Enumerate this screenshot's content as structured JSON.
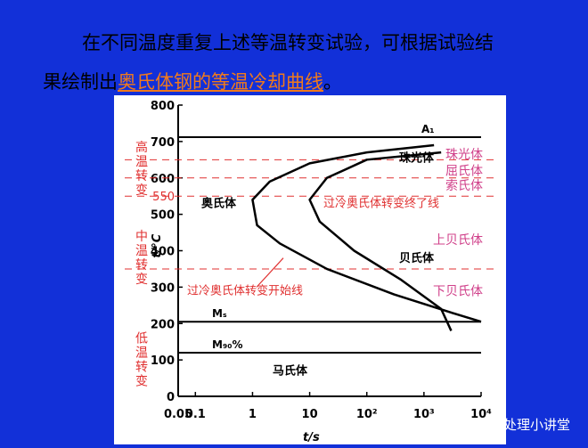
{
  "slide": {
    "line1": "在不同温度重复上述等温转变试验，可根据试验结",
    "line2_prefix": "果绘制出",
    "line2_link": "奥氏体钢的等温冷却曲线",
    "line2_end": "。",
    "watermark": "热处理小讲堂"
  },
  "chart_data": {
    "type": "ttt",
    "xlabel": "t/s",
    "ylabel": "t/°C",
    "log_x": true,
    "xlim": [
      0.05,
      10000
    ],
    "xticks": [
      0.05,
      0.1,
      1,
      10,
      {
        "value": 100,
        "label": "10²"
      },
      {
        "value": 1000,
        "label": "10³"
      },
      {
        "value": 10000,
        "label": "10⁴"
      }
    ],
    "ylim": [
      0,
      800
    ],
    "yticks": [
      0,
      100,
      200,
      300,
      400,
      500,
      600,
      700,
      800
    ],
    "series": [
      {
        "color": "#000000",
        "x": [
          1500,
          100,
          10,
          2,
          1,
          1.2,
          3,
          20,
          300,
          3000,
          10000
        ],
        "values": [
          690,
          670,
          640,
          590,
          540,
          470,
          420,
          350,
          280,
          230,
          205
        ]
      },
      {
        "color": "#000000",
        "x": [
          2000,
          100,
          20,
          10,
          15,
          60,
          400,
          2000,
          3000
        ],
        "values": [
          670,
          650,
          600,
          540,
          480,
          400,
          320,
          240,
          180
        ]
      }
    ],
    "hlines": [
      {
        "label": "A₁",
        "value": 712
      },
      {
        "label": "Mₛ",
        "value": 205
      },
      {
        "label": "M₉₀%",
        "value": 120
      }
    ],
    "dashed_lines": {
      "color": "#e03030",
      "values": [
        650,
        600,
        550,
        350
      ]
    },
    "boundary_label": {
      "text": "550",
      "value": 550
    },
    "regions": [
      "高温转变",
      "中温转变",
      "低温转变"
    ],
    "phase_labels": {
      "color": "#d0408a",
      "items": [
        "珠光体",
        "屈氏体",
        "索氏体",
        "上贝氏体",
        "下贝氏体"
      ]
    },
    "annotations": [
      "奥氏体",
      "珠光体",
      "贝氏体",
      "马氏体",
      "过冷奥氏体转变开始线",
      "过冷奥氏体转变终了线"
    ]
  }
}
